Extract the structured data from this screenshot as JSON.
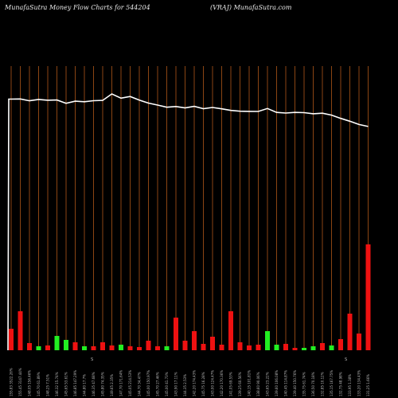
{
  "header": {
    "title_left": "MunafaSutra  Money Flow  Charts for 544204",
    "title_right": "(VRAJ) MunafaSutra.com"
  },
  "mid_label_left": "S",
  "mid_label_right": "S",
  "colors": {
    "background": "#000000",
    "grid": "#8b4513",
    "line": "#ffffff",
    "up": "#22ee22",
    "down": "#ee1111"
  },
  "chart_data": {
    "type": "bar+line",
    "categories": [
      "155.83 3522.26%",
      "155.45 3147.44%",
      "148.05 156.46%",
      "145.70 61.89%",
      "148.25 7.51%",
      "146.32 15.74%",
      "145.65 53.61%",
      "146.85 147.29%",
      "144.80 17.7%",
      "146.35 47.68%",
      "145.80 74.35%",
      "149.65 2.35%",
      "147.70 171.64%",
      "145.05 214.53%",
      "144.70 34.47%",
      "145.00 150.97%",
      "145.70 27.46%",
      "145.00 41.73%",
      "143.90 17.11%",
      "144.35 2.53%",
      "142.20 174.43%",
      "145.75 16.28%",
      "143.00 124.47%",
      "142.20 170.36%",
      "141.05 69.53%",
      "139.25 60.56%",
      "140.15 101.81%",
      "138.60 90.06%",
      "143.65 23.22%",
      "139.60 106.08%",
      "140.45 114.87%",
      "139.40 150.76%",
      "135.75 61.74%",
      "136.50 70.18%",
      "132.85 10.12%",
      "135.15 167.75%",
      "132.75 48.98%",
      "133.95 1.38%",
      "133.20 134.43%",
      "131.25 1.66%"
    ],
    "price_line": [
      455,
      456,
      440,
      452,
      445,
      447,
      418,
      437,
      432,
      441,
      444,
      500,
      463,
      478,
      446,
      420,
      403,
      384,
      390,
      378,
      392,
      371,
      382,
      370,
      356,
      349,
      348,
      347,
      373,
      339,
      333,
      339,
      337,
      327,
      332,
      315,
      287,
      262,
      233,
      216
    ],
    "bars": [
      {
        "value": 27,
        "direction": "down"
      },
      {
        "value": 49,
        "direction": "down"
      },
      {
        "value": 9,
        "direction": "down"
      },
      {
        "value": 5,
        "direction": "up"
      },
      {
        "value": 6,
        "direction": "down"
      },
      {
        "value": 18,
        "direction": "up"
      },
      {
        "value": 13,
        "direction": "up"
      },
      {
        "value": 10,
        "direction": "down"
      },
      {
        "value": 5,
        "direction": "up"
      },
      {
        "value": 5,
        "direction": "down"
      },
      {
        "value": 10,
        "direction": "down"
      },
      {
        "value": 6,
        "direction": "down"
      },
      {
        "value": 7,
        "direction": "up"
      },
      {
        "value": 5,
        "direction": "down"
      },
      {
        "value": 4,
        "direction": "down"
      },
      {
        "value": 12,
        "direction": "down"
      },
      {
        "value": 5,
        "direction": "down"
      },
      {
        "value": 5,
        "direction": "up"
      },
      {
        "value": 41,
        "direction": "down"
      },
      {
        "value": 12,
        "direction": "down"
      },
      {
        "value": 24,
        "direction": "down"
      },
      {
        "value": 8,
        "direction": "down"
      },
      {
        "value": 17,
        "direction": "down"
      },
      {
        "value": 7,
        "direction": "down"
      },
      {
        "value": 49,
        "direction": "down"
      },
      {
        "value": 10,
        "direction": "down"
      },
      {
        "value": 6,
        "direction": "down"
      },
      {
        "value": 7,
        "direction": "down"
      },
      {
        "value": 24,
        "direction": "up"
      },
      {
        "value": 7,
        "direction": "up"
      },
      {
        "value": 8,
        "direction": "down"
      },
      {
        "value": 3,
        "direction": "down"
      },
      {
        "value": 3,
        "direction": "up"
      },
      {
        "value": 5,
        "direction": "up"
      },
      {
        "value": 9,
        "direction": "down"
      },
      {
        "value": 6,
        "direction": "up"
      },
      {
        "value": 14,
        "direction": "down"
      },
      {
        "value": 46,
        "direction": "down"
      },
      {
        "value": 21,
        "direction": "down"
      },
      {
        "value": 133,
        "direction": "down"
      }
    ],
    "grid": true,
    "legend": "none"
  }
}
